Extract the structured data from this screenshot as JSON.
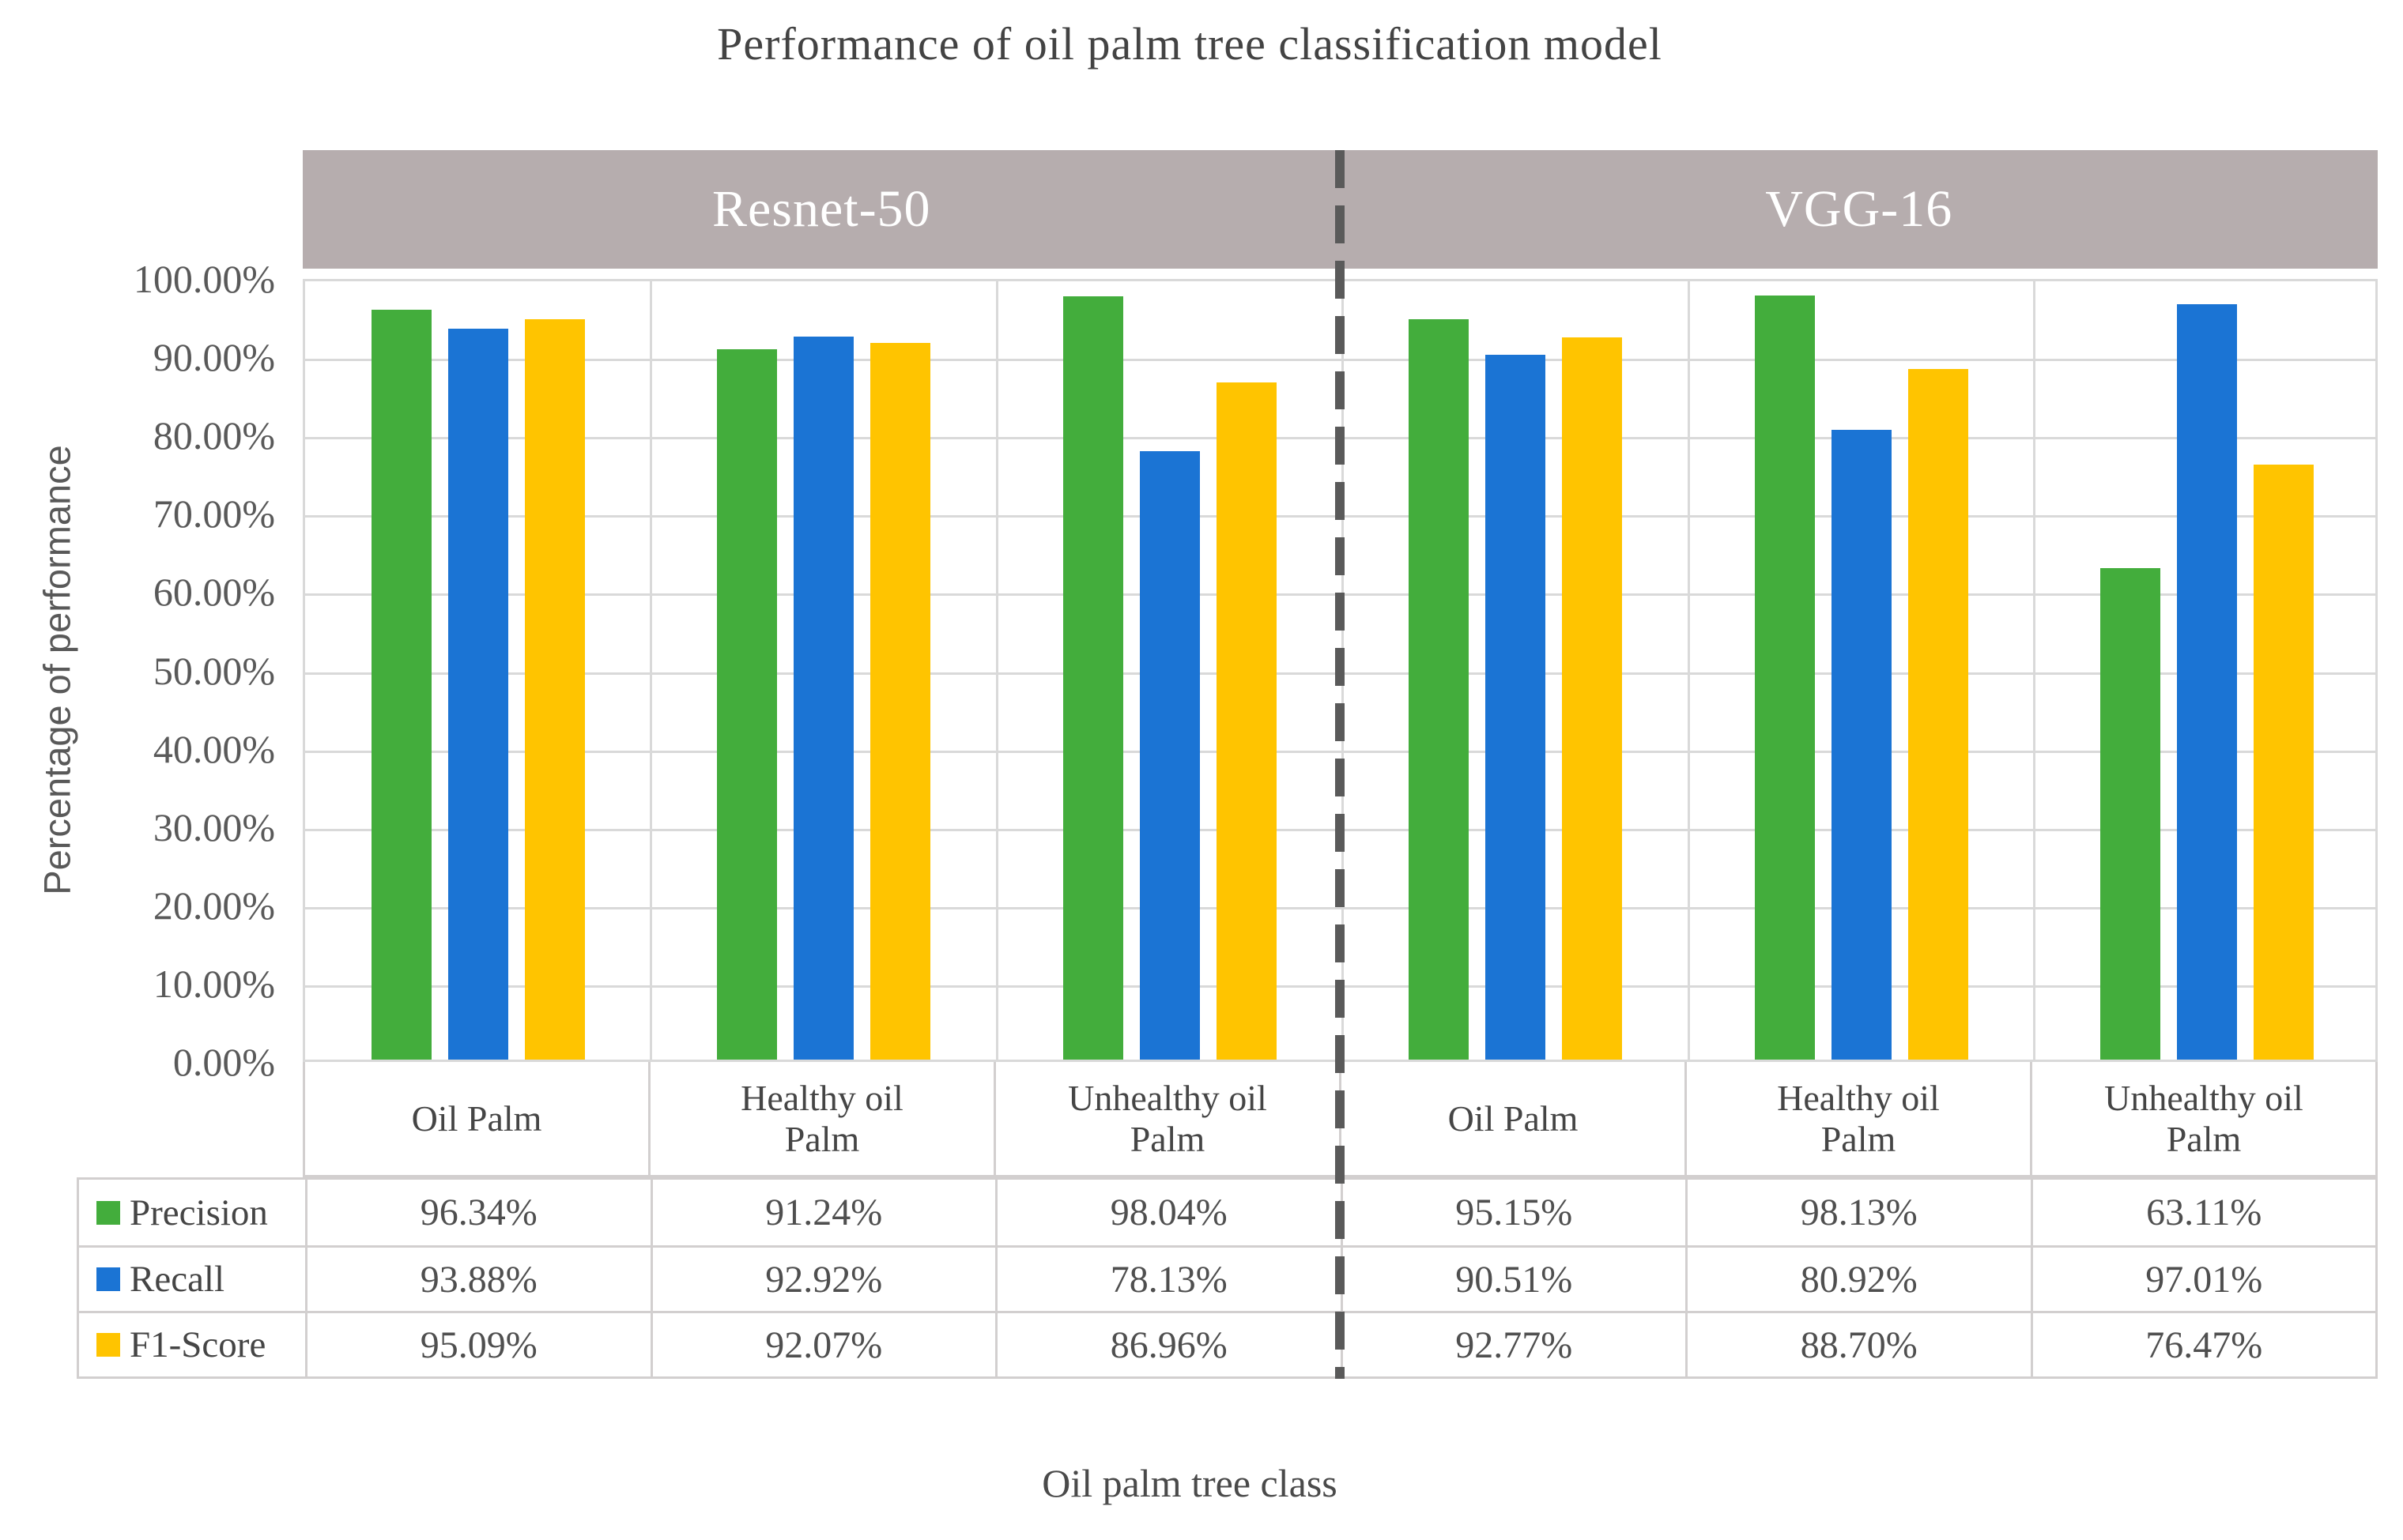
{
  "chart_data": {
    "type": "bar",
    "title": "Performance of oil palm tree classification model",
    "xlabel": "Oil palm tree class",
    "ylabel": "Percentage of performance",
    "group_headers": [
      "Resnet-50",
      "VGG-16"
    ],
    "categories": [
      "Oil Palm",
      "Healthy oil Palm",
      "Unhealthy oil Palm",
      "Oil Palm",
      "Healthy oil Palm",
      "Unhealthy oil Palm"
    ],
    "series": [
      {
        "name": "Precision",
        "color": "#43ad3c",
        "values": [
          96.34,
          91.24,
          98.04,
          95.15,
          98.13,
          63.11
        ]
      },
      {
        "name": "Recall",
        "color": "#1b74d4",
        "values": [
          93.88,
          92.92,
          78.13,
          90.51,
          80.92,
          97.01
        ]
      },
      {
        "name": "F1-Score",
        "color": "#ffc400",
        "values": [
          95.09,
          92.07,
          86.96,
          92.77,
          88.7,
          76.47
        ]
      }
    ],
    "ylim": [
      0,
      100
    ],
    "ytick_step": 10,
    "ytick_labels": [
      "100.00%",
      "90.00%",
      "80.00%",
      "70.00%",
      "60.00%",
      "50.00%",
      "40.00%",
      "30.00%",
      "20.00%",
      "10.00%",
      "0.00%"
    ],
    "value_suffix": "%",
    "grid": true,
    "legend_position": "table-left"
  },
  "colors": {
    "band_background": "#b6adae",
    "band_text": "#ffffff",
    "gridline": "#d9d9d9",
    "table_border": "#d2cfcf",
    "separator_dash": "#5a5a5a",
    "text": "#4d4d4d"
  }
}
